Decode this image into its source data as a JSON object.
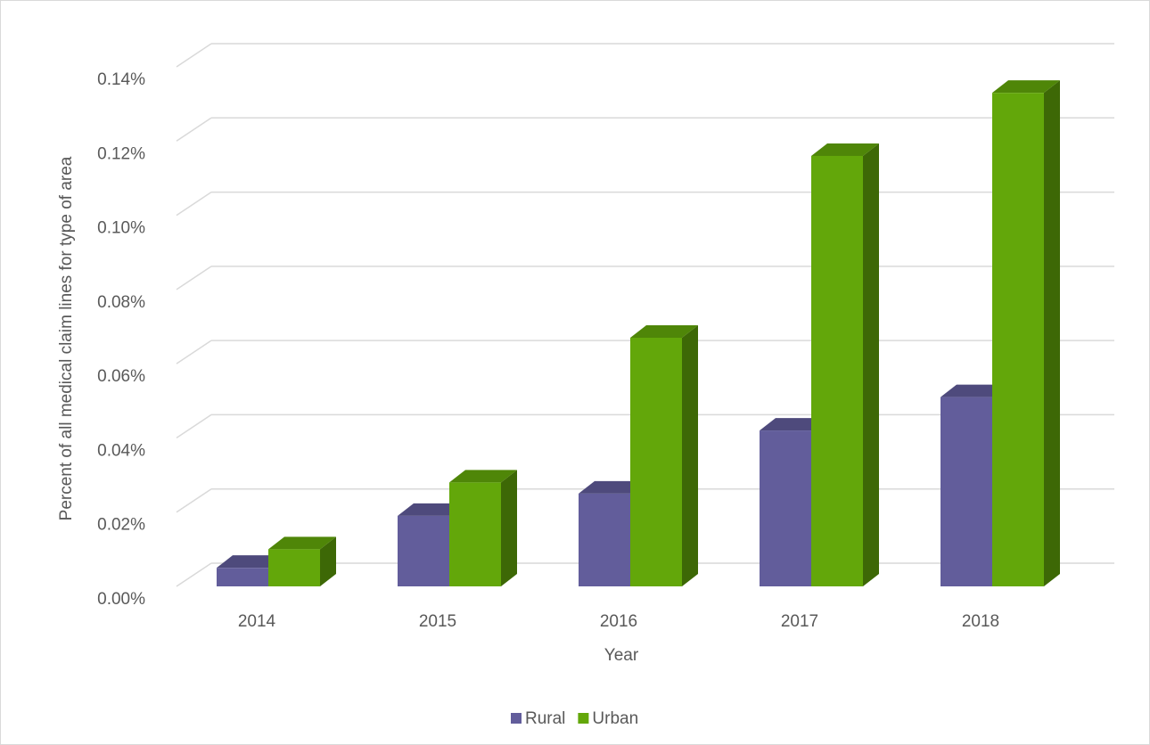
{
  "chart_data": {
    "type": "bar",
    "x_label": "Year",
    "y_label": "Percent of all medical claim lines for type of area",
    "categories": [
      "2014",
      "2015",
      "2016",
      "2017",
      "2018"
    ],
    "series": [
      {
        "name": "Rural",
        "color": "#625d9b",
        "values": [
          0.005,
          0.019,
          0.025,
          0.042,
          0.051
        ]
      },
      {
        "name": "Urban",
        "color": "#63a70a",
        "values": [
          0.01,
          0.028,
          0.067,
          0.116,
          0.133
        ]
      }
    ],
    "ylim": [
      0,
      0.14
    ],
    "yticks": [
      {
        "value": 0,
        "label": "0.00%"
      },
      {
        "value": 0.02,
        "label": "0.02%"
      },
      {
        "value": 0.04,
        "label": "0.04%"
      },
      {
        "value": 0.06,
        "label": "0.06%"
      },
      {
        "value": 0.08,
        "label": "0.08%"
      },
      {
        "value": 0.1,
        "label": "0.10%"
      },
      {
        "value": 0.12,
        "label": "0.12%"
      },
      {
        "value": 0.14,
        "label": "0.14%"
      }
    ],
    "grid": true,
    "legend": "bottom"
  }
}
